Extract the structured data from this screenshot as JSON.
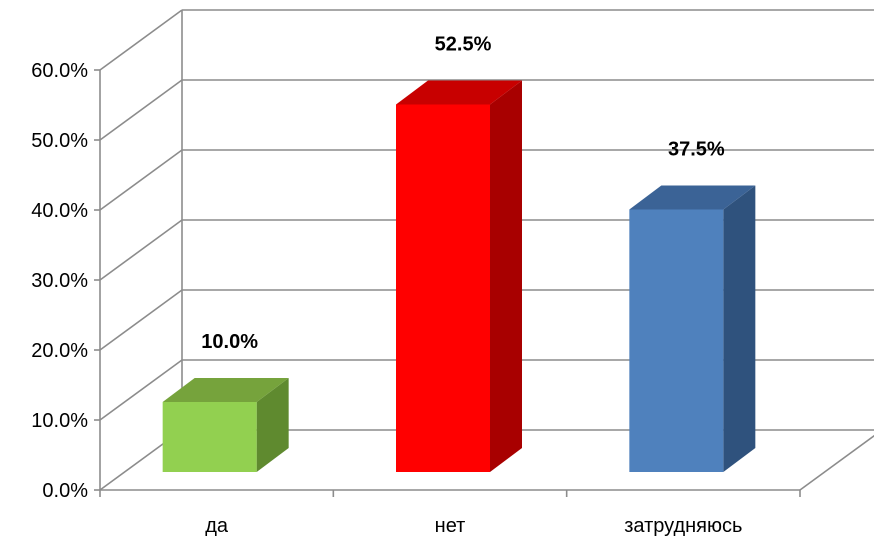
{
  "chart_data": {
    "type": "bar",
    "categories": [
      "да",
      "нет",
      "затрудняюсь"
    ],
    "values": [
      10.0,
      52.5,
      37.5
    ],
    "value_labels": [
      "10.0%",
      "52.5%",
      "37.5%"
    ],
    "colors": [
      "#92D050",
      "#FF0000",
      "#4F81BD"
    ],
    "side_colors": [
      "#5F8A2F",
      "#A80000",
      "#2F527D"
    ],
    "top_colors": [
      "#76A33C",
      "#C80000",
      "#3B6396"
    ],
    "ylim": [
      0,
      60
    ],
    "yticks": [
      "0.0%",
      "10.0%",
      "20.0%",
      "30.0%",
      "40.0%",
      "50.0%",
      "60.0%"
    ],
    "title": "",
    "xlabel": "",
    "ylabel": "",
    "style": "3d-column",
    "grid": true,
    "legend": "none"
  }
}
